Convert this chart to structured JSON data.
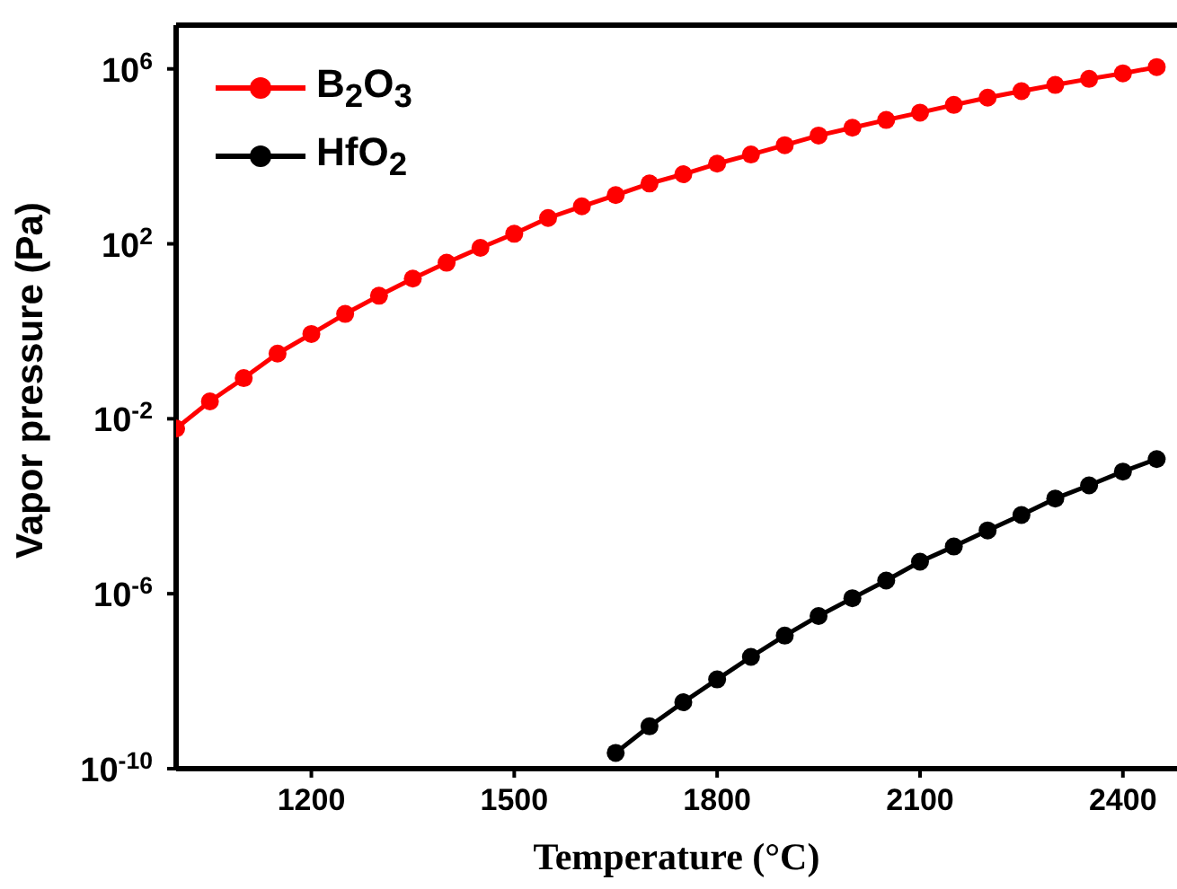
{
  "chart_data": {
    "type": "line",
    "xlabel": "Temperature (°C)",
    "ylabel": "Vapor pressure (Pa)",
    "xlim": [
      1000,
      2480
    ],
    "xticks": [
      1200,
      1500,
      1800,
      2100,
      2400
    ],
    "ylim": [
      1e-10,
      10000000.0
    ],
    "log": "y",
    "yticks": [
      {
        "value": 1e-10,
        "label": "10$^{-10}$"
      },
      {
        "value": 1e-06,
        "label": "10$^{-6}$"
      },
      {
        "value": 0.01,
        "label": "10$^{-2}$"
      },
      {
        "value": 100,
        "label": "10$^{2}$"
      },
      {
        "value": 1000000,
        "label": "10$^{6}$"
      }
    ],
    "grid": false,
    "legend": "top left",
    "marker": "circle",
    "line_style": "solid",
    "series": [
      {
        "name": "B$_{2}$O$_{3}$",
        "color": "#ff0000",
        "x": [
          1000,
          1050,
          1100,
          1150,
          1200,
          1250,
          1300,
          1350,
          1400,
          1450,
          1500,
          1550,
          1600,
          1650,
          1700,
          1750,
          1800,
          1850,
          1900,
          1950,
          2000,
          2050,
          2100,
          2150,
          2200,
          2250,
          2300,
          2350,
          2400,
          2450
        ],
        "values": [
          0.006,
          0.025,
          0.085,
          0.31,
          0.87,
          2.5,
          6.5,
          16,
          37,
          81,
          170,
          390,
          720,
          1300,
          2400,
          3900,
          6800,
          11000,
          18000,
          30000,
          45000,
          68000,
          100000,
          150000,
          220000,
          310000,
          430000,
          590000,
          790000,
          1100000
        ]
      },
      {
        "name": "HfO$_{2}$",
        "color": "#000000",
        "x": [
          1650,
          1700,
          1750,
          1800,
          1850,
          1900,
          1950,
          2000,
          2050,
          2100,
          2150,
          2200,
          2250,
          2300,
          2350,
          2400,
          2450
        ],
        "values": [
          2.3e-10,
          9.3e-10,
          3.3e-09,
          1.1e-08,
          3.6e-08,
          1.1e-07,
          3.1e-07,
          7.9e-07,
          2e-06,
          5.4e-06,
          1.2e-05,
          2.8e-05,
          6.3e-05,
          0.00015,
          0.0003,
          0.00062,
          0.0012
        ]
      }
    ]
  }
}
